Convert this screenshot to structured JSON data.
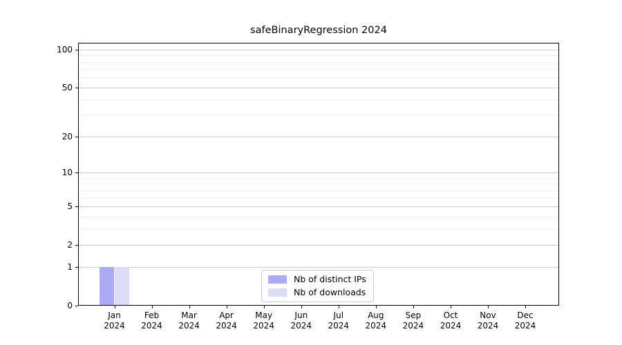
{
  "chart_data": {
    "type": "bar",
    "title": "safeBinaryRegression 2024",
    "categories": [
      "Jan",
      "Feb",
      "Mar",
      "Apr",
      "May",
      "Jun",
      "Jul",
      "Aug",
      "Sep",
      "Oct",
      "Nov",
      "Dec"
    ],
    "year": "2024",
    "series": [
      {
        "name": "Nb of distinct IPs",
        "color": "#aaaaf5",
        "values": [
          1,
          0,
          0,
          0,
          0,
          0,
          0,
          0,
          0,
          0,
          0,
          0
        ]
      },
      {
        "name": "Nb of downloads",
        "color": "#dcdcf8",
        "values": [
          1,
          0,
          0,
          0,
          0,
          0,
          0,
          0,
          0,
          0,
          0,
          0
        ]
      }
    ],
    "yscale": "log1p",
    "ylim": [
      0,
      113
    ],
    "yticks_major": [
      0,
      1,
      2,
      5,
      10,
      20,
      50,
      100
    ],
    "yticks_minor": [
      3,
      4,
      6,
      7,
      8,
      9,
      30,
      40,
      60,
      70,
      80,
      90
    ],
    "grid": "horizontal",
    "legend_position": "lower-center",
    "colors": {
      "spine": "#000000",
      "grid_major": "#cbcbcb",
      "grid_minor": "#efefef",
      "text": "#000000",
      "legend_border": "#cccccc"
    }
  }
}
